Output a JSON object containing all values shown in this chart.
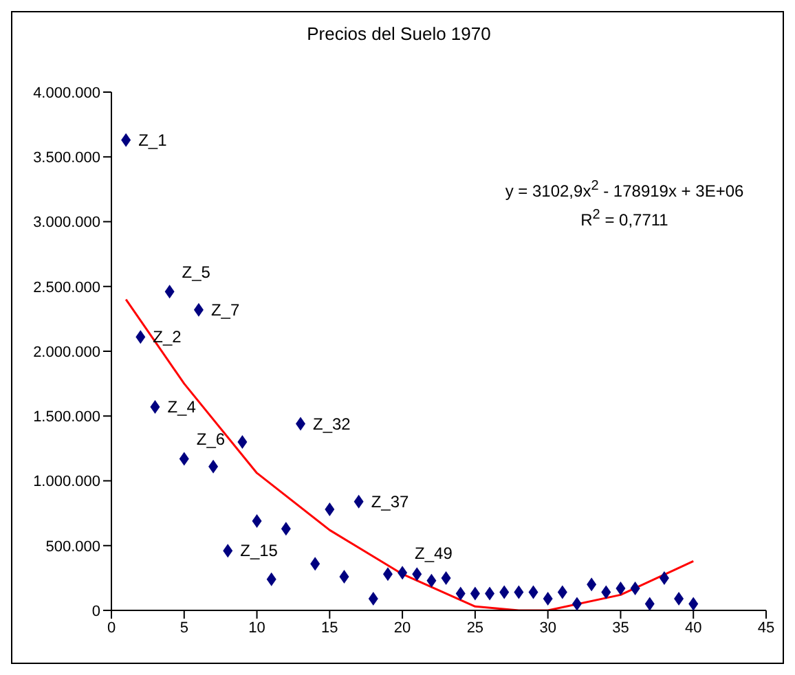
{
  "chart_data": {
    "type": "scatter",
    "title": "Precios del Suelo 1970",
    "marker": "diamond",
    "grid": false,
    "legend": false,
    "xlim": [
      0,
      45
    ],
    "xticks": [
      0,
      5,
      10,
      15,
      20,
      25,
      30,
      35,
      40,
      45
    ],
    "ylim": [
      0,
      4000000
    ],
    "yticks": [
      {
        "value": 0,
        "label": "0"
      },
      {
        "value": 500000,
        "label": "500.000"
      },
      {
        "value": 1000000,
        "label": "1.000.000"
      },
      {
        "value": 1500000,
        "label": "1.500.000"
      },
      {
        "value": 2000000,
        "label": "2.000.000"
      },
      {
        "value": 2500000,
        "label": "2.500.000"
      },
      {
        "value": 3000000,
        "label": "3.000.000"
      },
      {
        "value": 3500000,
        "label": "3.500.000"
      },
      {
        "value": 4000000,
        "label": "4.000.000"
      }
    ],
    "series": [
      {
        "color": "#000080",
        "x": [
          1,
          2,
          3,
          4,
          5,
          6,
          7,
          8,
          9,
          10,
          11,
          12,
          13,
          14,
          15,
          16,
          17,
          18,
          19,
          20,
          21,
          22,
          23,
          24,
          25,
          26,
          27,
          28,
          29,
          30,
          31,
          32,
          33,
          34,
          35,
          36,
          37,
          38,
          39,
          40
        ],
        "values": [
          3630000,
          2110000,
          1570000,
          2460000,
          1170000,
          2320000,
          1110000,
          460000,
          1300000,
          690000,
          240000,
          630000,
          1440000,
          360000,
          780000,
          260000,
          840000,
          90000,
          280000,
          290000,
          280000,
          230000,
          250000,
          130000,
          130000,
          130000,
          140000,
          140000,
          140000,
          90000,
          140000,
          50000,
          200000,
          140000,
          170000,
          170000,
          50000,
          250000,
          90000,
          50000
        ]
      },
      {
        "type": "line",
        "color": "#ff0000",
        "marker": "none",
        "x": [
          1,
          5,
          10,
          15,
          20,
          25,
          28,
          30,
          35,
          40
        ],
        "values": [
          2400000,
          1750000,
          1060000,
          620000,
          280000,
          30000,
          0,
          0,
          120000,
          380000
        ]
      }
    ],
    "annotations": [
      {
        "text": "Z_1",
        "x": 1,
        "y": 3630000
      },
      {
        "text": "Z_2",
        "x": 2,
        "y": 2110000
      },
      {
        "text": "Z_4",
        "x": 3,
        "y": 1570000
      },
      {
        "text": "Z_5",
        "x": 4,
        "y": 2460000
      },
      {
        "text": "Z_6",
        "x": 5,
        "y": 1170000
      },
      {
        "text": "Z_7",
        "x": 6,
        "y": 2320000
      },
      {
        "text": "Z_15",
        "x": 8,
        "y": 460000
      },
      {
        "text": "Z_32",
        "x": 13,
        "y": 1440000
      },
      {
        "text": "Z_37",
        "x": 17,
        "y": 840000
      },
      {
        "text": "Z_49",
        "x": 20,
        "y": 290000
      },
      "y = 3102,9x$^{2}$ - 178919x + 3E+06",
      "R$^{2}$ = 0,7711"
    ]
  }
}
